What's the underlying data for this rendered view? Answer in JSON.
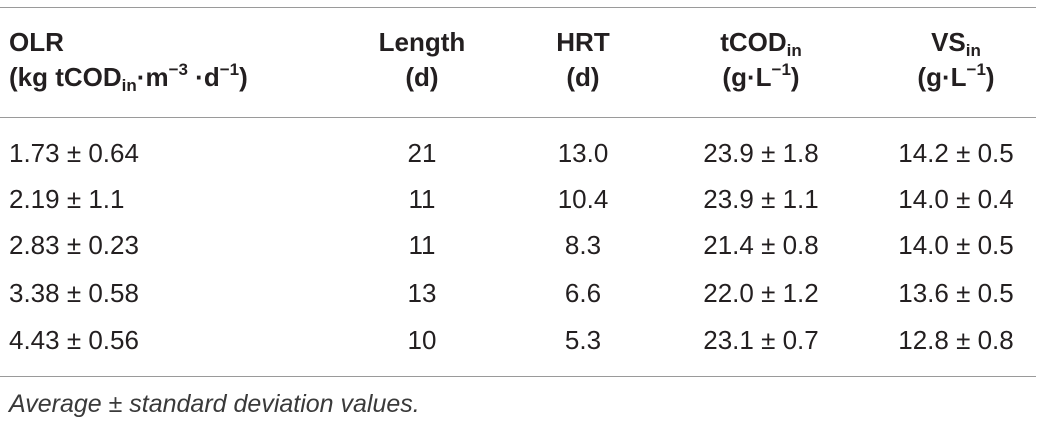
{
  "table": {
    "headers": [
      {
        "line1": "OLR",
        "line2_parts": [
          "(kg tCOD",
          "in",
          "·m",
          "−3",
          " ·d",
          "−1",
          ")"
        ]
      },
      {
        "line1": "Length",
        "line2": "(d)"
      },
      {
        "line1": "HRT",
        "line2": "(d)"
      },
      {
        "line1_main": "tCOD",
        "line1_sub": "in",
        "line2_main": "(g·L",
        "line2_sup": "−1",
        "line2_end": ")"
      },
      {
        "line1_main": "VS",
        "line1_sub": "in",
        "line2_main": "(g·L",
        "line2_sup": "−1",
        "line2_end": ")"
      }
    ],
    "rows": [
      [
        "1.73 ± 0.64",
        "21",
        "13.0",
        "23.9 ± 1.8",
        "14.2 ± 0.5"
      ],
      [
        "2.19 ± 1.1",
        "11",
        "10.4",
        "23.9 ± 1.1",
        "14.0 ± 0.4"
      ],
      [
        "2.83 ± 0.23",
        "11",
        "8.3",
        "21.4 ± 0.8",
        "14.0 ± 0.5"
      ],
      [
        "3.38 ± 0.58",
        "13",
        "6.6",
        "22.0 ± 1.2",
        "13.6 ± 0.5"
      ],
      [
        "4.43 ± 0.56",
        "10",
        "5.3",
        "23.1 ± 0.7",
        "12.8 ± 0.8"
      ]
    ]
  },
  "footnote": "Average ± standard deviation values."
}
